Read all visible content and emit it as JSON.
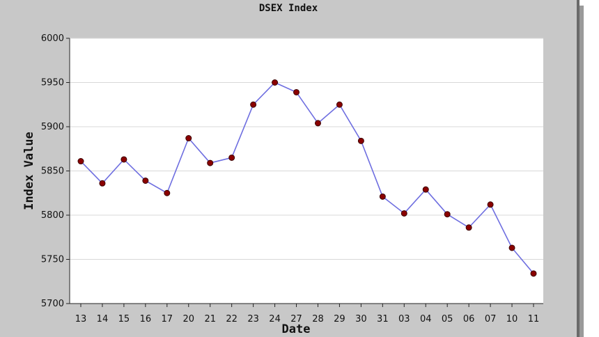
{
  "chart_data": {
    "type": "line",
    "title": "DSEX Index",
    "xlabel": "Date",
    "ylabel": "Index Value",
    "categories": [
      "13",
      "14",
      "15",
      "16",
      "17",
      "20",
      "21",
      "22",
      "23",
      "24",
      "27",
      "28",
      "29",
      "30",
      "31",
      "03",
      "04",
      "05",
      "06",
      "07",
      "10",
      "11"
    ],
    "series": [
      {
        "values": [
          5861,
          5836,
          5863,
          5839,
          5825,
          5887,
          5859,
          5865,
          5925,
          5950,
          5939,
          5904,
          5925,
          5884,
          5821,
          5802,
          5829,
          5801,
          5786,
          5812,
          5763,
          5734
        ]
      }
    ],
    "yticks": [
      5700,
      5750,
      5800,
      5850,
      5900,
      5950,
      6000
    ],
    "ylim": [
      5700,
      6000
    ],
    "grid": true,
    "colors": {
      "line": "#6e6ee0",
      "marker_fill": "#8b0000",
      "marker_stroke": "#3a0000",
      "grid": "#d8d8d8",
      "panel": "#c8c8c8",
      "plot_bg": "#ffffff"
    }
  }
}
